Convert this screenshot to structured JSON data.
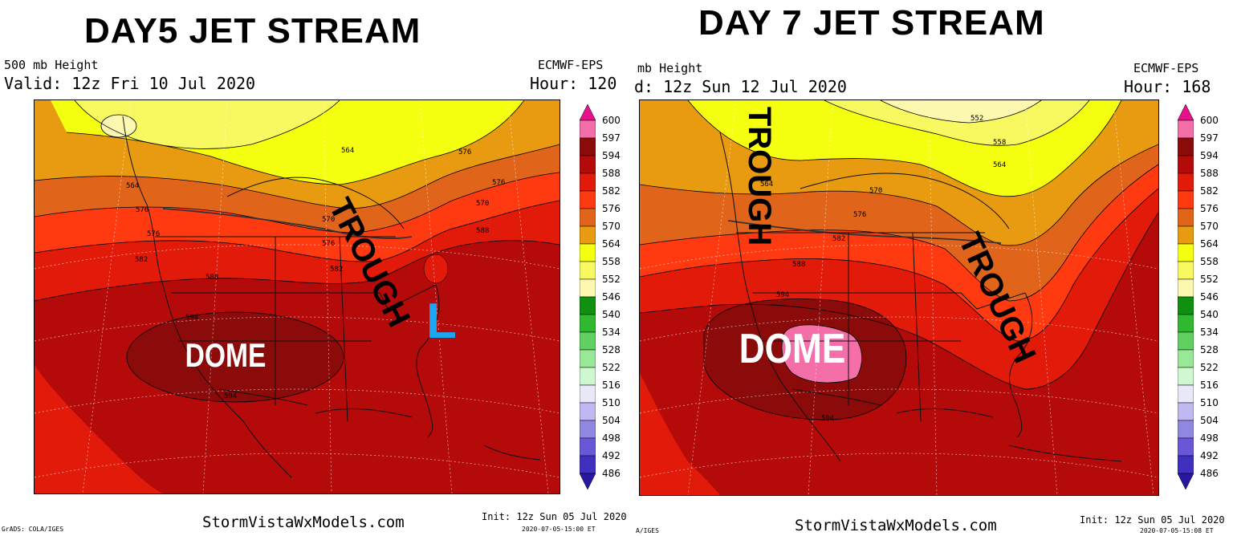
{
  "panels": [
    {
      "title": "DAY5 JET STREAM",
      "field": "500 mb Height",
      "valid": "Valid: 12z Fri 10 Jul 2020",
      "model": "ECMWF-EPS",
      "hour": "Hour: 120",
      "annotations": {
        "trough": "TROUGH",
        "dome": "DOME",
        "low": "L"
      },
      "contour_labels": [
        "564",
        "564",
        "576",
        "576",
        "570",
        "576",
        "582",
        "588",
        "594",
        "594",
        "576",
        "582",
        "570",
        "576",
        "588"
      ],
      "site": "StormVistaWxModels.com",
      "init": "Init: 12z Sun 05 Jul 2020",
      "stamp": "2020-07-05-15:00 ET",
      "grads": "GrADS: COLA/IGES"
    },
    {
      "title": "DAY 7 JET STREAM",
      "field": "mb Height",
      "valid": "d: 12z Sun 12 Jul 2020",
      "model": "ECMWF-EPS",
      "hour": "Hour: 168",
      "annotations": {
        "trough_west": "TROUGH",
        "trough_east": "TROUGH",
        "dome": "DOME"
      },
      "contour_labels": [
        "552",
        "558",
        "564",
        "564",
        "570",
        "576",
        "582",
        "588",
        "594",
        "594"
      ],
      "site": "StormVistaWxModels.com",
      "init": "Init: 12z Sun 05 Jul 2020",
      "stamp": "2020-07-05-15:08 ET",
      "grads": "A/IGES"
    }
  ],
  "colorbar": {
    "levels": [
      "600",
      "597",
      "594",
      "588",
      "582",
      "576",
      "570",
      "564",
      "558",
      "552",
      "546",
      "540",
      "534",
      "528",
      "522",
      "516",
      "510",
      "504",
      "498",
      "492",
      "486"
    ],
    "colors": [
      "#e8118c",
      "#f46fa8",
      "#8b0a0a",
      "#b50a0a",
      "#e11a0a",
      "#ff3a10",
      "#e0641a",
      "#e89a10",
      "#f5ff10",
      "#f8f860",
      "#fcf8b0",
      "#109010",
      "#30b830",
      "#60d060",
      "#98e898",
      "#d0f8d0",
      "#e8e8f8",
      "#c0b8f0",
      "#9088e0",
      "#6858d8",
      "#4030c0",
      "#2818a0"
    ]
  }
}
